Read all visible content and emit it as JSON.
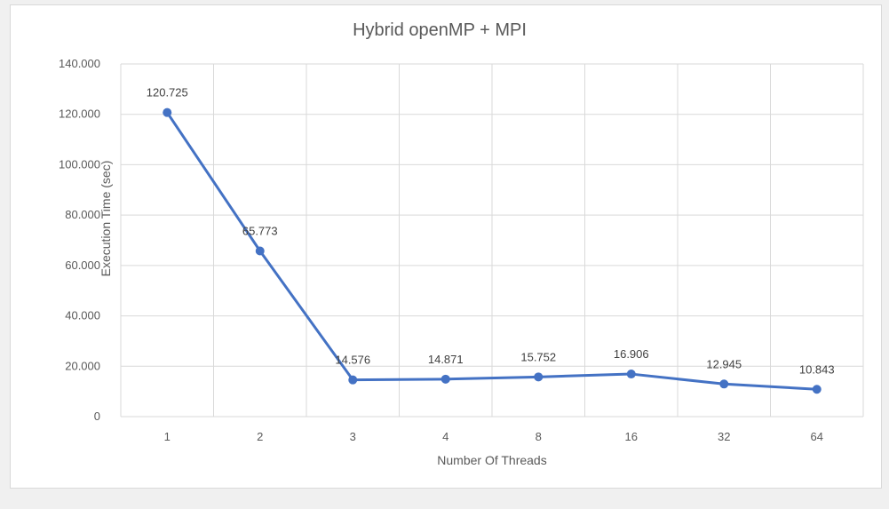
{
  "chart_data": {
    "type": "line",
    "title": "Hybrid openMP + MPI",
    "xlabel": "Number Of Threads",
    "ylabel": "Execution Time (sec)",
    "categories": [
      "1",
      "2",
      "3",
      "4",
      "8",
      "16",
      "32",
      "64"
    ],
    "series": [
      {
        "values": [
          120.725,
          65.773,
          14.576,
          14.871,
          15.752,
          16.906,
          12.945,
          10.843
        ],
        "data_labels": [
          "120.725",
          "65.773",
          "14.576",
          "14.871",
          "15.752",
          "16.906",
          "12.945",
          "10.843"
        ]
      }
    ],
    "ylim": [
      0,
      140
    ],
    "y_ticks": [
      0,
      20,
      40,
      60,
      80,
      100,
      120,
      140
    ],
    "y_tick_labels": [
      "0",
      "20.000",
      "40.000",
      "60.000",
      "80.000",
      "100.000",
      "120.000",
      "140.000"
    ],
    "grid": true,
    "legend": "none",
    "colors": {
      "series": "#4472c4",
      "grid": "#d9d9d9",
      "text": "#595959"
    }
  }
}
